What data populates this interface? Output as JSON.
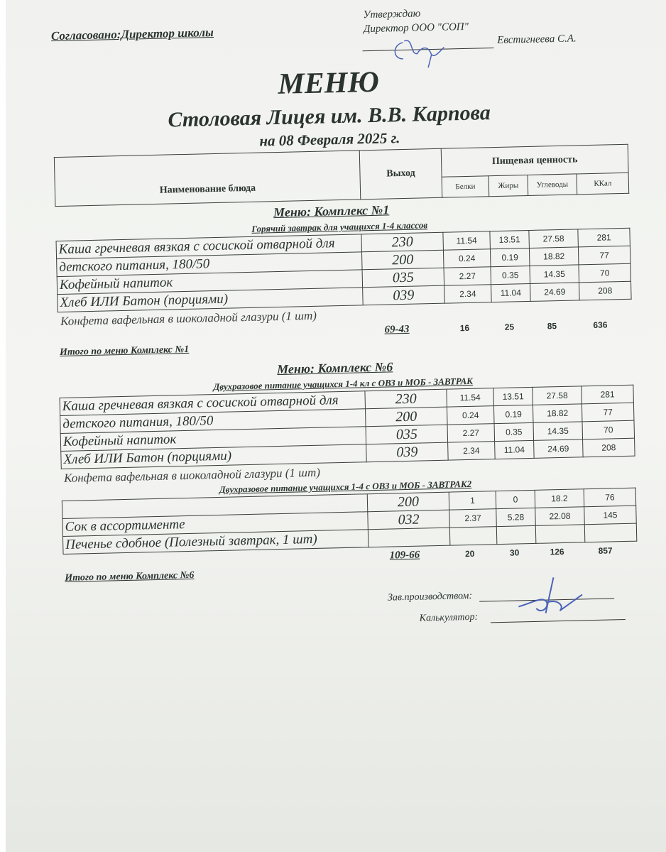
{
  "header": {
    "agreed": "Согласовано:Директор школы",
    "approve_line1": "Утверждаю",
    "approve_line2": "Директор ООО \"СОП\"",
    "approver_name": "Евстигнеева С.А.",
    "title": "МЕНЮ",
    "subtitle": "Столовая Лицея им. В.В. Карпова",
    "date": "на 08 Февраля 2025 г."
  },
  "table_header": {
    "dish": "Наименование блюда",
    "output": "Выход",
    "nutrition": "Пищевая ценность",
    "protein": "Белки",
    "fat": "Жиры",
    "carbs": "Углеводы",
    "kcal": "ККал"
  },
  "menus": [
    {
      "title": "Меню: Комплекс №1",
      "blocks": [
        {
          "subtitle": "Горячий завтрак для учащихся 1-4 классов",
          "rows": [
            {
              "name": "Каша гречневая вязкая с сосиской отварной для",
              "output": "230",
              "protein": "11.54",
              "fat": "13.51",
              "carbs": "27.58",
              "kcal": "281"
            },
            {
              "name": "детского питания, 180/50",
              "output": "200",
              "protein": "0.24",
              "fat": "0.19",
              "carbs": "18.82",
              "kcal": "77"
            },
            {
              "name": "Кофейный напиток",
              "output": "035",
              "protein": "2.27",
              "fat": "0.35",
              "carbs": "14.35",
              "kcal": "70"
            },
            {
              "name": "Хлеб ИЛИ Батон (порциями)",
              "output": "039",
              "protein": "2.34",
              "fat": "11.04",
              "carbs": "24.69",
              "kcal": "208"
            }
          ],
          "overflow": "Конфета вафельная в шоколадной глазури (1 шт)"
        }
      ],
      "total": {
        "label": "Итого по меню Комплекс №1",
        "price": "69-43",
        "protein": "16",
        "fat": "25",
        "carbs": "85",
        "kcal": "636"
      }
    },
    {
      "title": "Меню: Комплекс №6",
      "blocks": [
        {
          "subtitle": "Двухразовое питание учащихся 1-4 кл с ОВЗ и МОБ - ЗАВТРАК",
          "rows": [
            {
              "name": "Каша гречневая вязкая с сосиской отварной для",
              "output": "230",
              "protein": "11.54",
              "fat": "13.51",
              "carbs": "27.58",
              "kcal": "281"
            },
            {
              "name": "детского питания, 180/50",
              "output": "200",
              "protein": "0.24",
              "fat": "0.19",
              "carbs": "18.82",
              "kcal": "77"
            },
            {
              "name": "Кофейный напиток",
              "output": "035",
              "protein": "2.27",
              "fat": "0.35",
              "carbs": "14.35",
              "kcal": "70"
            },
            {
              "name": "Хлеб ИЛИ Батон (порциями)",
              "output": "039",
              "protein": "2.34",
              "fat": "11.04",
              "carbs": "24.69",
              "kcal": "208"
            }
          ],
          "overflow": "Конфета вафельная в шоколадной глазури (1 шт)"
        },
        {
          "subtitle": "Двухразовое питание учащихся 1-4 с ОВЗ и МОБ - ЗАВТРАК2",
          "rows": [
            {
              "name": "",
              "output": "200",
              "protein": "1",
              "fat": "0",
              "carbs": "18.2",
              "kcal": "76"
            },
            {
              "name": "Сок в ассортименте",
              "output": "032",
              "protein": "2.37",
              "fat": "5.28",
              "carbs": "22.08",
              "kcal": "145"
            },
            {
              "name": "Печенье сдобное (Полезный завтрак, 1 шт)",
              "output": "",
              "protein": "",
              "fat": "",
              "carbs": "",
              "kcal": ""
            }
          ]
        }
      ],
      "total": {
        "label": "Итого по меню Комплекс №6",
        "price": "109-66",
        "protein": "20",
        "fat": "30",
        "carbs": "126",
        "kcal": "857"
      }
    }
  ],
  "footer": {
    "production_head": "Зав.производством:",
    "calculator": "Калькулятор:"
  },
  "colors": {
    "ink": "#2a3330",
    "signature": "#4a63b8"
  }
}
